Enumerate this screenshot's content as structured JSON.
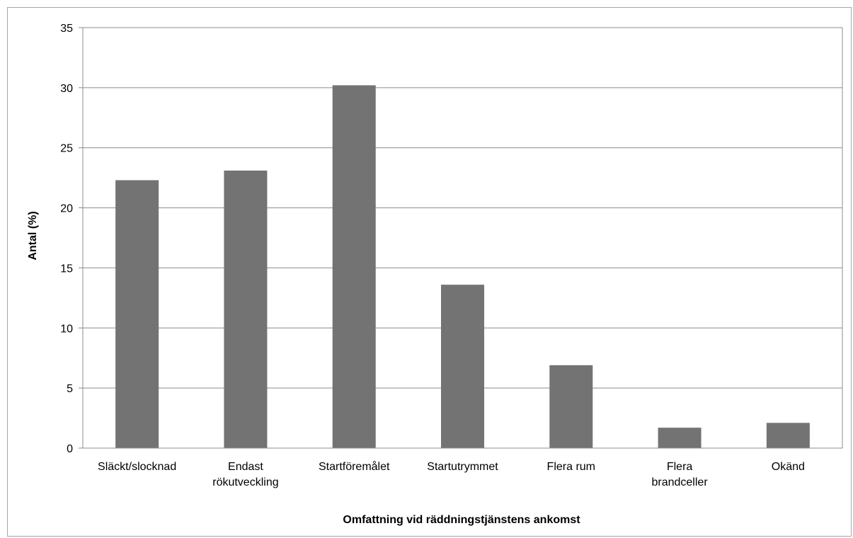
{
  "chart_data": {
    "type": "bar",
    "categories": [
      [
        "Släckt/slocknad"
      ],
      [
        "Endast",
        "rökutveckling"
      ],
      [
        "Startföremålet"
      ],
      [
        "Startutrymmet"
      ],
      [
        "Flera rum"
      ],
      [
        "Flera",
        "brandceller"
      ],
      [
        "Okänd"
      ]
    ],
    "values": [
      22.3,
      23.1,
      30.2,
      13.6,
      6.9,
      1.7,
      2.1
    ],
    "title": "",
    "xlabel": "Omfattning vid räddningstjänstens ankomst",
    "ylabel": "Antal (%)",
    "ylim": [
      0,
      35
    ],
    "yticks": [
      0,
      5,
      10,
      15,
      20,
      25,
      30,
      35
    ],
    "grid": true,
    "legend": "none",
    "colors": {
      "bar": "#737373",
      "grid": "#8c8c8c",
      "axis": "#8c8c8c"
    }
  }
}
